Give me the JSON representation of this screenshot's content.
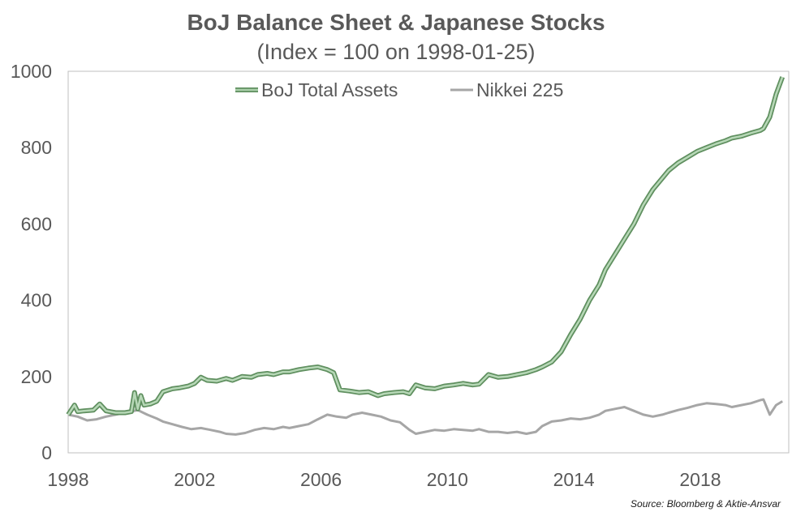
{
  "chart_data": {
    "type": "line",
    "title": "BoJ Balance Sheet & Japanese Stocks",
    "subtitle": "(Index = 100 on 1998-01-25)",
    "xlabel": "",
    "ylabel": "",
    "xlim": [
      1998,
      2020.8
    ],
    "ylim": [
      0,
      1000
    ],
    "x_ticks": [
      "1998",
      "2002",
      "2006",
      "2010",
      "2014",
      "2018"
    ],
    "y_ticks": [
      "0",
      "200",
      "400",
      "600",
      "800",
      "1000"
    ],
    "legend_position": "top-center",
    "grid": false,
    "source": "Source: Bloomberg & Aktie-Ansvar",
    "series": [
      {
        "name": "BoJ Total Assets",
        "color": "#8dbb8d",
        "x": [
          1998.0,
          1998.2,
          1998.3,
          1998.5,
          1998.8,
          1999.0,
          1999.2,
          1999.5,
          1999.8,
          2000.0,
          2000.1,
          2000.2,
          2000.3,
          2000.4,
          2000.6,
          2000.8,
          2001.0,
          2001.3,
          2001.5,
          2001.8,
          2002.0,
          2002.2,
          2002.4,
          2002.7,
          2003.0,
          2003.2,
          2003.5,
          2003.8,
          2004.0,
          2004.3,
          2004.5,
          2004.8,
          2005.0,
          2005.3,
          2005.6,
          2005.9,
          2006.2,
          2006.4,
          2006.6,
          2006.9,
          2007.2,
          2007.5,
          2007.8,
          2008.0,
          2008.3,
          2008.6,
          2008.8,
          2009.0,
          2009.3,
          2009.6,
          2009.9,
          2010.2,
          2010.5,
          2010.8,
          2011.0,
          2011.3,
          2011.6,
          2011.9,
          2012.2,
          2012.5,
          2012.8,
          2013.0,
          2013.3,
          2013.6,
          2013.9,
          2014.2,
          2014.5,
          2014.8,
          2015.0,
          2015.3,
          2015.6,
          2015.9,
          2016.2,
          2016.5,
          2016.8,
          2017.0,
          2017.3,
          2017.6,
          2017.9,
          2018.2,
          2018.5,
          2018.8,
          2019.0,
          2019.3,
          2019.6,
          2019.9,
          2020.0,
          2020.2,
          2020.4,
          2020.6
        ],
        "values": [
          100,
          125,
          108,
          110,
          112,
          128,
          110,
          105,
          105,
          108,
          158,
          115,
          150,
          125,
          128,
          135,
          160,
          168,
          170,
          175,
          182,
          198,
          190,
          188,
          195,
          190,
          200,
          198,
          205,
          208,
          205,
          212,
          212,
          218,
          222,
          225,
          218,
          210,
          165,
          162,
          158,
          160,
          150,
          155,
          158,
          160,
          155,
          178,
          170,
          168,
          175,
          178,
          182,
          178,
          180,
          205,
          198,
          200,
          205,
          210,
          218,
          225,
          238,
          265,
          310,
          350,
          400,
          440,
          480,
          520,
          560,
          600,
          650,
          690,
          720,
          740,
          760,
          775,
          790,
          800,
          810,
          818,
          825,
          830,
          838,
          845,
          850,
          880,
          940,
          985
        ]
      },
      {
        "name": "Nikkei 225",
        "color": "#a6a6a6",
        "x": [
          1998.0,
          1998.3,
          1998.6,
          1998.9,
          1999.2,
          1999.5,
          1999.8,
          2000.0,
          2000.2,
          2000.5,
          2000.8,
          2001.0,
          2001.3,
          2001.6,
          2001.9,
          2002.2,
          2002.5,
          2002.8,
          2003.0,
          2003.3,
          2003.6,
          2003.9,
          2004.2,
          2004.5,
          2004.8,
          2005.0,
          2005.3,
          2005.6,
          2005.9,
          2006.2,
          2006.5,
          2006.8,
          2007.0,
          2007.3,
          2007.6,
          2007.9,
          2008.2,
          2008.5,
          2008.8,
          2009.0,
          2009.3,
          2009.6,
          2009.9,
          2010.2,
          2010.5,
          2010.8,
          2011.0,
          2011.3,
          2011.6,
          2011.9,
          2012.2,
          2012.5,
          2012.8,
          2013.0,
          2013.3,
          2013.6,
          2013.9,
          2014.2,
          2014.5,
          2014.8,
          2015.0,
          2015.3,
          2015.6,
          2015.9,
          2016.2,
          2016.5,
          2016.8,
          2017.0,
          2017.3,
          2017.6,
          2017.9,
          2018.2,
          2018.5,
          2018.8,
          2019.0,
          2019.3,
          2019.6,
          2019.9,
          2020.0,
          2020.2,
          2020.4,
          2020.6
        ],
        "values": [
          100,
          95,
          85,
          88,
          95,
          100,
          105,
          108,
          112,
          100,
          90,
          82,
          75,
          68,
          62,
          65,
          60,
          55,
          50,
          48,
          52,
          60,
          65,
          62,
          68,
          65,
          70,
          75,
          88,
          100,
          95,
          92,
          100,
          105,
          100,
          95,
          85,
          80,
          60,
          50,
          55,
          60,
          58,
          62,
          60,
          58,
          62,
          55,
          55,
          52,
          55,
          50,
          55,
          70,
          82,
          85,
          90,
          88,
          92,
          100,
          110,
          115,
          120,
          110,
          100,
          95,
          100,
          105,
          112,
          118,
          125,
          130,
          128,
          125,
          120,
          125,
          130,
          138,
          140,
          100,
          125,
          135
        ]
      }
    ]
  }
}
